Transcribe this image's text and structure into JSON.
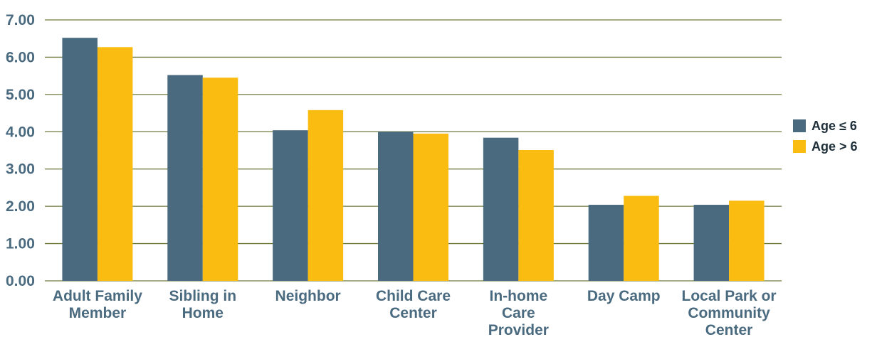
{
  "chart_data": {
    "type": "bar",
    "title": "",
    "xlabel": "",
    "ylabel": "",
    "ylim": [
      0,
      7
    ],
    "yticks": [
      "0.00",
      "1.00",
      "2.00",
      "3.00",
      "4.00",
      "5.00",
      "6.00",
      "7.00"
    ],
    "grid": true,
    "legend_position": "right",
    "categories": [
      [
        "Adult Family",
        "Member"
      ],
      [
        "Sibling in",
        "Home"
      ],
      [
        "Neighbor"
      ],
      [
        "Child Care",
        "Center"
      ],
      [
        "In-home",
        "Care",
        "Provider"
      ],
      [
        "Day Camp"
      ],
      [
        "Local Park or",
        "Community",
        "Center"
      ]
    ],
    "series": [
      {
        "name": "Age ≤ 6",
        "color": "#4a6a80",
        "values": [
          6.52,
          5.52,
          4.04,
          4.0,
          3.84,
          2.04,
          2.04
        ]
      },
      {
        "name": "Age > 6",
        "color": "#fbbc11",
        "values": [
          6.27,
          5.45,
          4.58,
          3.95,
          3.51,
          2.28,
          2.15
        ]
      }
    ]
  }
}
